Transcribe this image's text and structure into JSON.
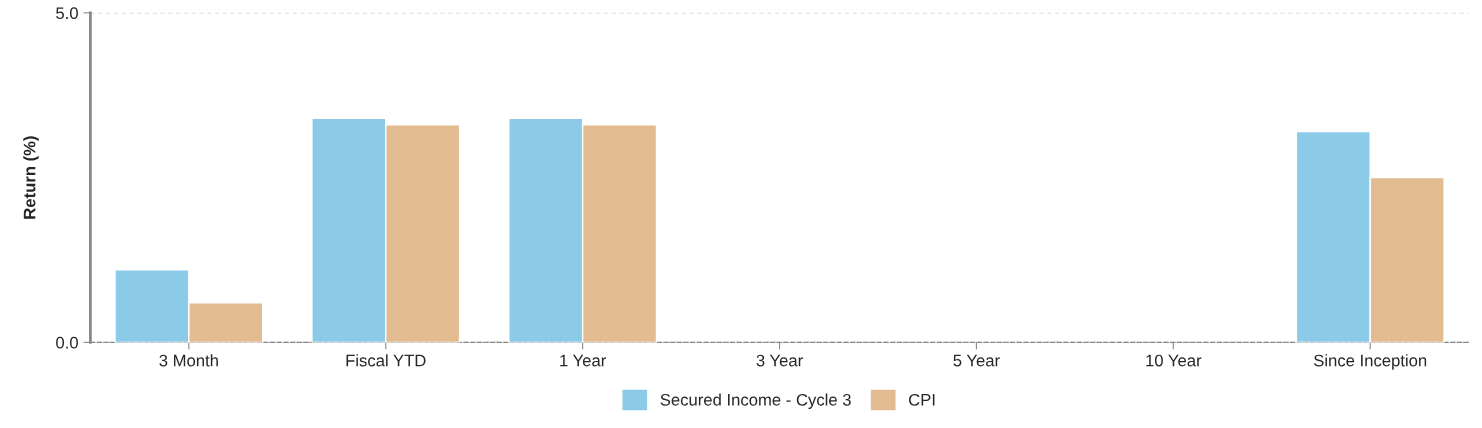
{
  "chart_data": {
    "type": "bar",
    "ylabel": "Return (%)",
    "categories": [
      "3 Month",
      "Fiscal YTD",
      "1 Year",
      "3 Year",
      "5 Year",
      "10 Year",
      "Since Inception"
    ],
    "series": [
      {
        "name": "Secured Income - Cycle 3",
        "color": "#8ccbe8",
        "values": [
          1.1,
          3.4,
          3.4,
          null,
          null,
          null,
          3.2
        ]
      },
      {
        "name": "CPI",
        "color": "#e2bb91",
        "values": [
          0.6,
          3.3,
          3.3,
          null,
          null,
          null,
          2.5
        ]
      }
    ],
    "ylim": [
      0,
      5
    ],
    "yticks": [
      {
        "value": 0,
        "label": "0.0"
      },
      {
        "value": 5,
        "label": "5.0"
      }
    ],
    "grid": "y",
    "legend": "bottom"
  }
}
